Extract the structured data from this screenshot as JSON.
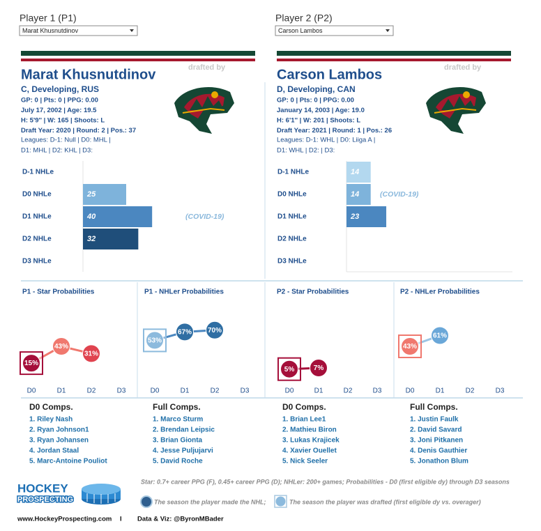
{
  "players": [
    {
      "selector_label": "Player 1 (P1)",
      "name": "Marat Khusnutdinov",
      "drafted_by": "drafted by",
      "position_line": "C, Developing, RUS",
      "info": [
        "GP: 0 | Pts: 0 | PPG: 0.00",
        "July 17, 2002 | Age: 19.5",
        "H: 5'9'' | W: 165 | Shoots: L",
        "Draft Year: 2020 | Round: 2 | Pos.: 37"
      ],
      "leagues": [
        "Leagues: D-1: Null | D0: MHL |",
        "D1: MHL | D2: KHL | D3:"
      ]
    },
    {
      "selector_label": "Player 2 (P2)",
      "name": "Carson Lambos",
      "drafted_by": "drafted by",
      "position_line": "D, Developing, CAN",
      "info": [
        "GP: 0 | Pts: 0 | PPG: 0.00",
        "January 14, 2003 | Age: 19.0",
        "H: 6'1'' | W: 201 | Shoots: L",
        "Draft Year: 2021 | Round: 1 | Pos.: 26"
      ],
      "leagues": [
        "Leagues: D-1: WHL | D0: Liiga A |",
        "D1: WHL | D2:  | D3:"
      ]
    }
  ],
  "chart_data": [
    {
      "type": "bar",
      "categories": [
        "D-1 NHLe",
        "D0 NHLe",
        "D1 NHLe",
        "D2 NHLe",
        "D3 NHLe"
      ],
      "values": [
        null,
        25,
        40,
        32,
        null
      ],
      "colors": [
        null,
        "#7eb3db",
        "#4b87c0",
        "#1f4e7a",
        null
      ],
      "xlim": [
        0,
        100
      ],
      "annotation": "(COVID-19)"
    },
    {
      "type": "bar",
      "categories": [
        "D-1 NHLe",
        "D0 NHLe",
        "D1 NHLe",
        "D2 NHLe",
        "D3 NHLe"
      ],
      "values": [
        14,
        14,
        23,
        null,
        null
      ],
      "colors": [
        "#b3d8ef",
        "#7eb3db",
        "#4b87c0",
        null,
        null
      ],
      "xlim": [
        0,
        100
      ],
      "annotation": "(COVID-19)"
    },
    {
      "type": "line",
      "title": "P1 - Star Probabilities",
      "categories": [
        "D0",
        "D1",
        "D2",
        "D3"
      ],
      "values": [
        15,
        43,
        31,
        null
      ],
      "value_labels": [
        "15%",
        "43%",
        "31%",
        null
      ],
      "point_colors": [
        "#a50f3a",
        "#f0786e",
        "#e0434f",
        null
      ],
      "markers": [
        "square",
        null,
        null,
        null
      ],
      "line_color": "#f0786e",
      "ylim": [
        0,
        100
      ]
    },
    {
      "type": "line",
      "title": "P1 - NHLer Probabilities",
      "categories": [
        "D0",
        "D1",
        "D2",
        "D3"
      ],
      "values": [
        53,
        67,
        70,
        null
      ],
      "value_labels": [
        "53%",
        "67%",
        "70%",
        null
      ],
      "point_colors": [
        "#8cbadd",
        "#2f6ea3",
        "#2f6ea3",
        null
      ],
      "markers": [
        "square",
        null,
        null,
        null
      ],
      "line_color": "#4b87c0",
      "ylim": [
        0,
        100
      ]
    },
    {
      "type": "line",
      "title": "P2 - Star Probabilities",
      "categories": [
        "D0",
        "D1",
        "D2",
        "D3"
      ],
      "values": [
        5,
        7,
        null,
        null
      ],
      "value_labels": [
        "5%",
        "7%",
        null,
        null
      ],
      "point_colors": [
        "#a50f3a",
        "#a50f3a",
        null,
        null
      ],
      "markers": [
        "square",
        null,
        null,
        null
      ],
      "line_color": "#a50f3a",
      "ylim": [
        0,
        100
      ]
    },
    {
      "type": "line",
      "title": "P2 - NHLer Probabilities",
      "categories": [
        "D0",
        "D1",
        "D2",
        "D3"
      ],
      "values": [
        43,
        61,
        null,
        null
      ],
      "value_labels": [
        "43%",
        "61%",
        null,
        null
      ],
      "point_colors": [
        "#f0786e",
        "#6aa7d8",
        null,
        null
      ],
      "markers": [
        "square",
        null,
        null,
        null
      ],
      "line_color": "#9cc5e4",
      "ylim": [
        0,
        100
      ]
    }
  ],
  "comps": [
    {
      "title": "D0 Comps.",
      "items": [
        "1. Riley Nash",
        "2. Ryan Johnson1",
        "3. Ryan Johansen",
        "4. Jordan Staal",
        "5. Marc-Antoine Pouliot"
      ]
    },
    {
      "title": "Full Comps.",
      "items": [
        "1. Marco Sturm",
        "2. Brendan Leipsic",
        "3. Brian Gionta",
        "4. Jesse Puljujarvi",
        "5. David Roche"
      ]
    },
    {
      "title": "D0 Comps.",
      "items": [
        "1. Brian Lee1",
        "2. Mathieu Biron",
        "3. Lukas Krajicek",
        "4. Xavier Ouellet",
        "5. Nick Seeler"
      ]
    },
    {
      "title": "Full Comps.",
      "items": [
        "1. Justin Faulk",
        "2. David Savard",
        "3. Joni Pitkanen",
        "4. Denis Gauthier",
        "5. Jonathon Blum"
      ]
    }
  ],
  "footer": {
    "logo_top": "HOCKEY",
    "logo_bottom": "PROSPECTING",
    "note": "Star: 0.7+ career PPG (F), 0.45+ career PPG (D); NHLer: 200+ games; Probabilities - D0 (first eligible dy) through D3 seasons",
    "legend_nhl": "The season the player made the NHL;",
    "legend_drafted": "The season the player was drafted (first eligible dy vs. overager)",
    "website": "www.HockeyProspecting.com",
    "separator": "I",
    "credit": "Data & Viz: @ByronMBader"
  }
}
